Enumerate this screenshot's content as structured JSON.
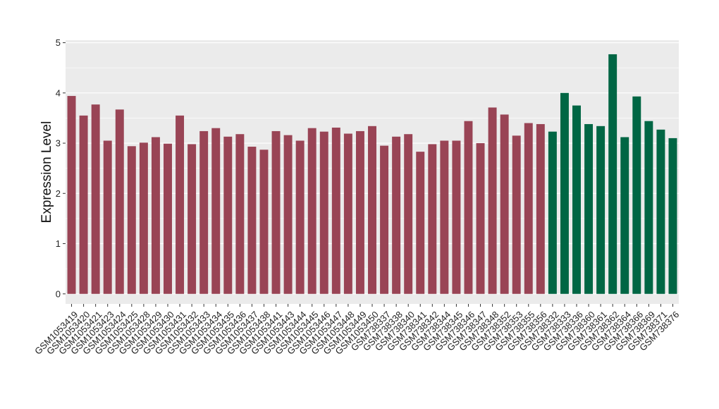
{
  "chart_data": {
    "type": "bar",
    "ylabel": "Expression Level",
    "xlabel": "",
    "ylim": [
      -0.2,
      5.05
    ],
    "yticks": [
      0,
      1,
      2,
      3,
      4,
      5
    ],
    "grid": true,
    "colors": {
      "group1": "#994455",
      "group2": "#006644",
      "panel": "#ebebeb",
      "gridline": "#ffffff"
    },
    "categories": [
      "GSM1053419",
      "GSM1053420",
      "GSM1053421",
      "GSM1053423",
      "GSM1053424",
      "GSM1053425",
      "GSM1053428",
      "GSM1053429",
      "GSM1053430",
      "GSM1053431",
      "GSM1053432",
      "GSM1053433",
      "GSM1053434",
      "GSM1053435",
      "GSM1053436",
      "GSM1053437",
      "GSM1053438",
      "GSM1053441",
      "GSM1053443",
      "GSM1053444",
      "GSM1053445",
      "GSM1053446",
      "GSM1053447",
      "GSM1053448",
      "GSM1053449",
      "GSM1053450",
      "GSM738337",
      "GSM738338",
      "GSM738340",
      "GSM738341",
      "GSM738342",
      "GSM738344",
      "GSM738345",
      "GSM738346",
      "GSM738347",
      "GSM738348",
      "GSM738352",
      "GSM738353",
      "GSM738355",
      "GSM738356",
      "GSM738332",
      "GSM738333",
      "GSM738336",
      "GSM738360",
      "GSM738361",
      "GSM738362",
      "GSM738364",
      "GSM738366",
      "GSM738369",
      "GSM738371",
      "GSM738376"
    ],
    "values": [
      3.94,
      3.55,
      3.77,
      3.05,
      3.67,
      2.94,
      3.01,
      3.12,
      2.99,
      3.55,
      2.98,
      3.24,
      3.3,
      3.13,
      3.18,
      2.93,
      2.87,
      3.24,
      3.16,
      3.05,
      3.3,
      3.23,
      3.31,
      3.19,
      3.24,
      3.34,
      2.95,
      3.13,
      3.18,
      2.83,
      2.98,
      3.05,
      3.05,
      3.44,
      3.0,
      3.71,
      3.57,
      3.15,
      3.4,
      3.38,
      3.23,
      4.0,
      3.75,
      3.38,
      3.34,
      4.77,
      3.12,
      3.93,
      3.44,
      3.27,
      3.1
    ],
    "groups": [
      1,
      1,
      1,
      1,
      1,
      1,
      1,
      1,
      1,
      1,
      1,
      1,
      1,
      1,
      1,
      1,
      1,
      1,
      1,
      1,
      1,
      1,
      1,
      1,
      1,
      1,
      1,
      1,
      1,
      1,
      1,
      1,
      1,
      1,
      1,
      1,
      1,
      1,
      1,
      1,
      2,
      2,
      2,
      2,
      2,
      2,
      2,
      2,
      2,
      2,
      2
    ]
  }
}
